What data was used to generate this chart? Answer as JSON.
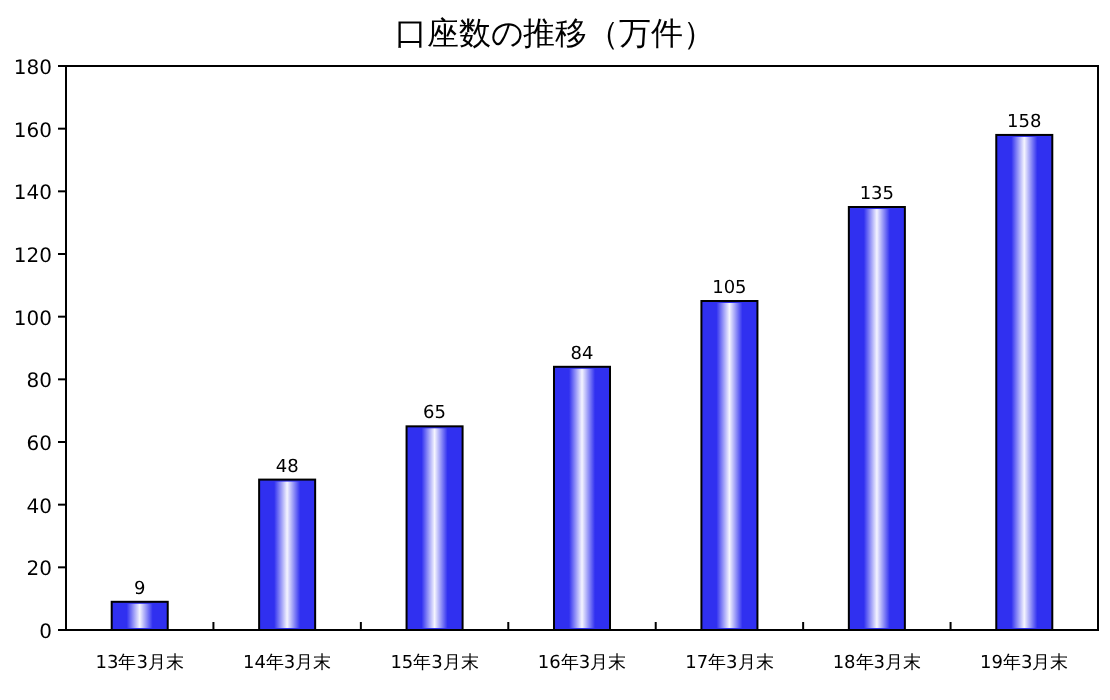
{
  "chart_data": {
    "type": "bar",
    "title": "口座数の推移（万件）",
    "categories": [
      "13年3月末",
      "14年3月末",
      "15年3月末",
      "16年3月末",
      "17年3月末",
      "18年3月末",
      "19年3月末"
    ],
    "values": [
      9,
      48,
      65,
      84,
      105,
      135,
      158
    ],
    "color": "#3030f0",
    "ylim": [
      0,
      180
    ],
    "yticks": [
      0,
      20,
      40,
      60,
      80,
      100,
      120,
      140,
      160,
      180
    ],
    "data_labels": true
  }
}
